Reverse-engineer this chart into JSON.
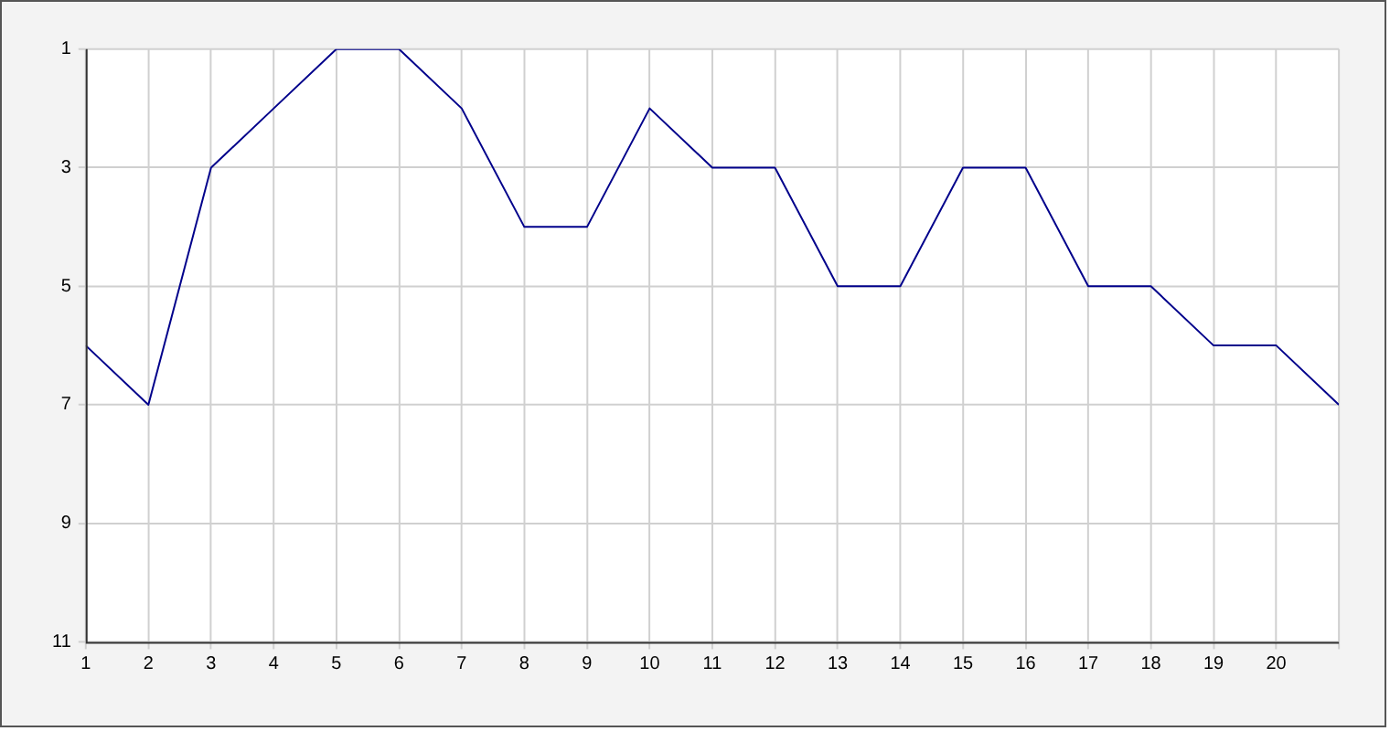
{
  "chart_data": {
    "type": "line",
    "x": [
      1,
      2,
      3,
      4,
      5,
      6,
      7,
      8,
      9,
      10,
      11,
      12,
      13,
      14,
      15,
      16,
      17,
      18,
      19,
      20,
      21
    ],
    "series": [
      {
        "color": "#00008b",
        "values": [
          6,
          7,
          3,
          2,
          1,
          1,
          2,
          4,
          4,
          2,
          3,
          3,
          5,
          5,
          3,
          3,
          5,
          5,
          6,
          6,
          7
        ]
      }
    ],
    "xlim": [
      1,
      21
    ],
    "xticks": [
      1,
      2,
      3,
      4,
      5,
      6,
      7,
      8,
      9,
      10,
      11,
      12,
      13,
      14,
      15,
      16,
      17,
      18,
      19,
      20,
      {
        "value": 21,
        "label": null
      }
    ],
    "ylim": [
      11,
      1
    ],
    "yticks": [
      1,
      3,
      5,
      7,
      9,
      11
    ],
    "grid": true,
    "legend": false,
    "marker": "none",
    "line_style": "solid"
  }
}
